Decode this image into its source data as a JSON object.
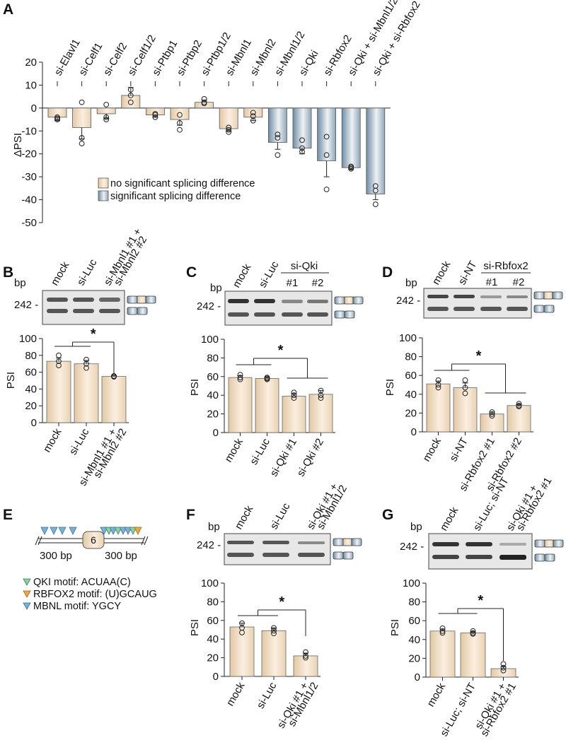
{
  "colors": {
    "tan_light": "#fbeee0",
    "tan_dark": "#e2c8a4",
    "blue_light": "#e9eef2",
    "blue_dark": "#7e97aa",
    "gel_bg": "#e7e7e7",
    "band": "#4a4a4a",
    "qki_motif": "#8fcfa8",
    "rbfox2_motif": "#f0a642",
    "mbnl_motif": "#7ab1d6"
  },
  "panels": {
    "A": {
      "label": "A",
      "ylabel": "ΔPSI",
      "ylim": [
        -50,
        20
      ],
      "legend": {
        "nonsig": "no significant splicing difference",
        "sig": "significant splicing difference"
      }
    },
    "B": {
      "label": "B",
      "bp": "bp",
      "marker": "242 -"
    },
    "C": {
      "label": "C",
      "bp": "bp",
      "marker": "242 -",
      "group_label": "si-Qki",
      "lane_numbers": [
        "#1",
        "#2"
      ]
    },
    "D": {
      "label": "D",
      "bp": "bp",
      "marker": "242 -",
      "group_label": "si-Rbfox2",
      "lane_numbers": [
        "#1",
        "#2"
      ]
    },
    "E": {
      "label": "E",
      "exon": "6",
      "left_len": "300 bp",
      "right_len": "300 bp",
      "legend": {
        "qki": "QKI motif: ACUAA(C)",
        "rbfox2": "RBFOX2 motif: (U)GCAUG",
        "mbnl": "MBNL motif: YGCY"
      }
    },
    "F": {
      "label": "F",
      "bp": "bp",
      "marker": "242 -"
    },
    "G": {
      "label": "G",
      "bp": "bp",
      "marker": "242 -"
    }
  },
  "chart_data": [
    {
      "panel": "A",
      "type": "bar",
      "ylabel": "ΔPSI",
      "ylim": [
        -50,
        20
      ],
      "yticks": [
        20,
        10,
        0,
        -10,
        -20,
        -30,
        -40,
        -50
      ],
      "categories": [
        "si-Elavl1",
        "si-Celf1",
        "si-Celf2",
        "si-Celf1/2",
        "si-Ptbp1",
        "si-Ptbp2",
        "si-Ptbp1/2",
        "si-Mbnl1",
        "si-Mbnl2",
        "si-Mbnl1/2",
        "si-Qki",
        "si-Rbfox2",
        "si-Qki + si-Mbnl1/2",
        "si-Qki + si-Rbfox2"
      ],
      "values": [
        -4,
        -8.5,
        -2.5,
        5.5,
        -3,
        -5,
        2.5,
        -9,
        -4,
        -15,
        -17.5,
        -23,
        -26,
        -37.5
      ],
      "errors": [
        1.5,
        5,
        2,
        3.5,
        1,
        2.5,
        1,
        1,
        1.5,
        3,
        2.5,
        7,
        0.8,
        2.5
      ],
      "significant": [
        false,
        false,
        false,
        false,
        false,
        false,
        false,
        false,
        false,
        true,
        true,
        true,
        true,
        true
      ],
      "points": [
        [
          -4,
          -5,
          -4.5
        ],
        [
          2.5,
          -13,
          -15.5
        ],
        [
          1.5,
          -4,
          -5
        ],
        [
          8,
          2.5,
          5.5
        ],
        [
          -2.5,
          -3,
          -4
        ],
        [
          -3,
          -6.5,
          -9.5
        ],
        [
          4,
          2.5,
          2
        ],
        [
          -8.5,
          -9.5,
          -10.5
        ],
        [
          -2,
          -3.5,
          -5.5
        ],
        [
          -11.5,
          -13,
          -20.5
        ],
        [
          -14,
          -17.5,
          -19
        ],
        [
          -12.5,
          -20.5,
          -35.5
        ],
        [
          -25.5,
          -26,
          -26.5
        ],
        [
          -34,
          -36,
          -42
        ]
      ],
      "legend": [
        "no significant splicing difference",
        "significant splicing difference"
      ]
    },
    {
      "panel": "B",
      "type": "bar",
      "ylabel": "PSI",
      "ylim": [
        0,
        100
      ],
      "yticks": [
        0,
        20,
        40,
        60,
        80,
        100
      ],
      "lane_labels": [
        "mock",
        "si-Luc",
        "si-Mbnl1 #1 + si-Mbnl2 #2"
      ],
      "categories": [
        "mock",
        "si-Luc",
        "si-Mbnl1 #1 + si-Mbnl2 #2"
      ],
      "values": [
        73,
        70,
        55
      ],
      "errors": [
        4,
        4,
        0.8
      ],
      "points": [
        [
          80,
          73,
          68
        ],
        [
          75,
          70,
          65
        ],
        [
          55.5,
          55,
          54.5
        ]
      ],
      "significance": "*"
    },
    {
      "panel": "C",
      "type": "bar",
      "ylabel": "PSI",
      "ylim": [
        0,
        100
      ],
      "yticks": [
        0,
        20,
        40,
        60,
        80,
        100
      ],
      "lane_labels": [
        "mock",
        "si-Luc",
        "",
        ""
      ],
      "categories": [
        "mock",
        "si-Luc",
        "si-Qki #1",
        "si-Qki #2"
      ],
      "values": [
        59,
        58,
        39,
        41
      ],
      "errors": [
        2,
        1,
        3,
        4
      ],
      "points": [
        [
          62,
          59,
          57
        ],
        [
          59,
          58,
          57
        ],
        [
          43,
          40,
          37
        ],
        [
          45,
          40,
          37
        ]
      ],
      "significance": "*"
    },
    {
      "panel": "D",
      "type": "bar",
      "ylabel": "PSI",
      "ylim": [
        0,
        100
      ],
      "yticks": [
        0,
        20,
        40,
        60,
        80,
        100
      ],
      "lane_labels": [
        "mock",
        "si-NT",
        "",
        ""
      ],
      "categories": [
        "mock",
        "si-NT",
        "si-Rbfox2 #1",
        "si-Rbfox2 #2"
      ],
      "values": [
        51,
        47,
        19,
        28
      ],
      "errors": [
        3,
        5,
        2,
        1
      ],
      "points": [
        [
          55,
          50,
          47
        ],
        [
          55,
          47,
          41
        ],
        [
          21,
          19,
          17
        ],
        [
          30,
          28,
          27
        ]
      ],
      "significance": "*"
    },
    {
      "panel": "F",
      "type": "bar",
      "ylabel": "PSI",
      "ylim": [
        0,
        100
      ],
      "yticks": [
        0,
        20,
        40,
        60,
        80,
        100
      ],
      "lane_labels": [
        "mock",
        "si-Luc",
        "si-Qki #1 + si-Mbnl1/2"
      ],
      "categories": [
        "mock",
        "si-Luc",
        "si-Qki #1 + si-Mbnl1/2"
      ],
      "values": [
        53,
        49,
        22
      ],
      "errors": [
        4,
        3,
        3
      ],
      "points": [
        [
          57,
          52,
          47
        ],
        [
          52,
          49,
          46
        ],
        [
          26,
          22,
          20
        ]
      ],
      "significance": "*"
    },
    {
      "panel": "G",
      "type": "bar",
      "ylabel": "PSI",
      "ylim": [
        0,
        100
      ],
      "yticks": [
        0,
        20,
        40,
        60,
        80,
        100
      ],
      "lane_labels": [
        "mock",
        "si-Luc; si-NT",
        "si-Qki #1 + si-Rbfox2 #1"
      ],
      "categories": [
        "mock",
        "si-Luc; si-NT",
        "si-Qki #1 + si-Rbfox2 #1"
      ],
      "values": [
        49,
        47,
        9
      ],
      "errors": [
        2,
        1,
        2
      ],
      "points": [
        [
          52,
          49,
          47
        ],
        [
          49,
          47,
          46
        ],
        [
          14,
          10,
          7
        ]
      ],
      "significance": "*"
    }
  ]
}
